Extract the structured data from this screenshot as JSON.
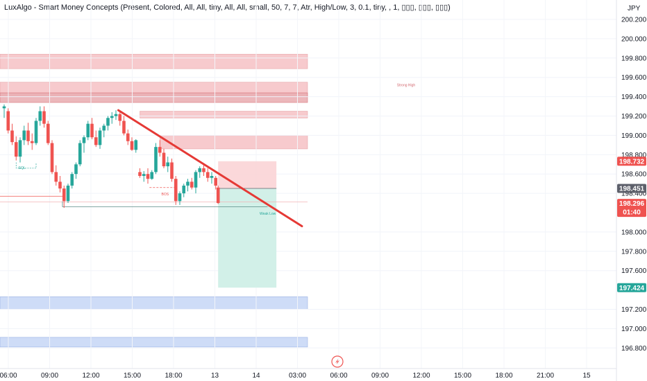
{
  "indicator_title": "LuxAlgo - Smart Money Concepts (Present, Colored, All, All, tiny, All, All, small, 50, 7, 7, Atr, High/Low, 3, 0.1, tiny, , 1, ▯▯▯, ▯▯▯, ▯▯▯)",
  "currency": "JPY",
  "colors": {
    "up": "#26a69a",
    "down": "#ef5350",
    "trendline": "#e53935",
    "supply": "#f7c5c8",
    "demand": "#c9d9f7",
    "tp_zone": "#cdeee6",
    "sl_zone": "#fbd4d6"
  },
  "chart_data": {
    "type": "candlestick",
    "title": "",
    "ylim": [
      196.8,
      200.25
    ],
    "y_ticks": [
      {
        "value": 200.2,
        "label": "200.200"
      },
      {
        "value": 200.0,
        "label": "200.000"
      },
      {
        "value": 199.8,
        "label": "199.800"
      },
      {
        "value": 199.6,
        "label": "199.600"
      },
      {
        "value": 199.4,
        "label": "199.400"
      },
      {
        "value": 199.2,
        "label": "199.200"
      },
      {
        "value": 199.0,
        "label": "199.000"
      },
      {
        "value": 198.8,
        "label": "198.800"
      },
      {
        "value": 198.6,
        "label": "198.600"
      },
      {
        "value": 198.4,
        "label": "198.400"
      },
      {
        "value": 198.0,
        "label": "198.000"
      },
      {
        "value": 197.8,
        "label": "197.800"
      },
      {
        "value": 197.6,
        "label": "197.600"
      },
      {
        "value": 197.2,
        "label": "197.200"
      },
      {
        "value": 197.0,
        "label": "197.000"
      },
      {
        "value": 196.8,
        "label": "196.800"
      }
    ],
    "x_ticks": [
      "06:00",
      "09:00",
      "12:00",
      "15:00",
      "18:00",
      "13",
      "14",
      "03:00",
      "06:00",
      "09:00",
      "12:00",
      "15:00",
      "18:00",
      "21:00",
      "15"
    ],
    "price_tags": [
      {
        "label": "198.732",
        "value": 198.732,
        "color": "#ef5350"
      },
      {
        "label": "198.451",
        "value": 198.451,
        "color": "#5d606b"
      },
      {
        "label": "198.296",
        "value": 198.296,
        "color": "#ef5350",
        "countdown": "01:40"
      },
      {
        "label": "197.424",
        "value": 197.424,
        "color": "#26a69a"
      }
    ],
    "zones": [
      {
        "kind": "supply",
        "from": 199.69,
        "to": 199.84,
        "x_start": 0,
        "x_end": 38
      },
      {
        "kind": "supply",
        "from": 199.4,
        "to": 199.55,
        "x_start": 0,
        "x_end": 38,
        "label": "Strong High"
      },
      {
        "kind": "supply-dark",
        "from": 199.34,
        "to": 199.44,
        "x_start": 0,
        "x_end": 38
      },
      {
        "kind": "supply",
        "from": 199.18,
        "to": 199.25,
        "x_start": 17,
        "x_end": 38
      },
      {
        "kind": "supply",
        "from": 198.86,
        "to": 199.0,
        "x_start": 19.5,
        "x_end": 38
      },
      {
        "kind": "demand",
        "from": 197.2,
        "to": 197.33,
        "x_start": 0,
        "x_end": 38
      },
      {
        "kind": "demand",
        "from": 196.81,
        "to": 196.91,
        "x_start": 0,
        "x_end": 38
      }
    ],
    "annotations": [
      {
        "text": "EQL",
        "x": 1.8,
        "y": 198.65,
        "color": "#26a69a"
      },
      {
        "text": "BOS",
        "x": 19.7,
        "y": 198.38,
        "color": "#ef5350"
      },
      {
        "text": "Weak Low",
        "x": 32,
        "y": 198.18,
        "color": "#26a69a"
      }
    ],
    "levels": [
      {
        "y": 198.37,
        "x_from": 0,
        "x_to": 7.3,
        "color": "#ef5350"
      },
      {
        "y": 198.26,
        "x_from": 7.3,
        "x_to": 33,
        "color": "#5b8c85"
      },
      {
        "y": 198.46,
        "x_from": 18.2,
        "x_to": 21.5,
        "color": "#ef5350",
        "dashed": true
      },
      {
        "y": 198.31,
        "x_from": 0,
        "x_to": 38,
        "color": "#f3b4b6"
      }
    ],
    "trendline": {
      "x1": 14.3,
      "y1": 199.26,
      "x2": 37.3,
      "y2": 198.06
    },
    "position": {
      "entry": 198.451,
      "stop": 198.732,
      "target": 197.424,
      "x_start": 26.8,
      "x_end": 34.1
    },
    "candles": [
      [
        0,
        199.28,
        199.32,
        199.18,
        199.3
      ],
      [
        0.5,
        199.25,
        199.28,
        199.02,
        199.05
      ],
      [
        1,
        199.05,
        199.12,
        198.9,
        198.93
      ],
      [
        1.5,
        198.93,
        198.99,
        198.74,
        198.78
      ],
      [
        2,
        198.78,
        198.98,
        198.72,
        198.95
      ],
      [
        2.5,
        198.95,
        199.1,
        198.9,
        199.05
      ],
      [
        3,
        199.05,
        199.13,
        198.9,
        198.94
      ],
      [
        3.5,
        198.94,
        199.02,
        198.85,
        198.92
      ],
      [
        4,
        198.92,
        199.18,
        198.9,
        199.15
      ],
      [
        4.5,
        199.15,
        199.3,
        199.1,
        199.25
      ],
      [
        5,
        199.25,
        199.3,
        199.08,
        199.12
      ],
      [
        5.5,
        199.12,
        199.15,
        198.9,
        198.92
      ],
      [
        6,
        198.92,
        198.95,
        198.6,
        198.62
      ],
      [
        6.5,
        198.62,
        198.69,
        198.48,
        198.52
      ],
      [
        7,
        198.52,
        198.58,
        198.41,
        198.45
      ],
      [
        7.5,
        198.45,
        198.48,
        198.25,
        198.32
      ],
      [
        8,
        198.32,
        198.5,
        198.3,
        198.48
      ],
      [
        8.5,
        198.48,
        198.62,
        198.45,
        198.6
      ],
      [
        9,
        198.6,
        198.72,
        198.55,
        198.7
      ],
      [
        9.5,
        198.7,
        198.95,
        198.68,
        198.92
      ],
      [
        10,
        198.92,
        199.0,
        198.82,
        198.98
      ],
      [
        10.5,
        198.98,
        199.15,
        198.95,
        199.12
      ],
      [
        11,
        199.12,
        199.18,
        198.96,
        198.98
      ],
      [
        11.5,
        198.98,
        199.05,
        198.88,
        198.9
      ],
      [
        12,
        198.9,
        199.08,
        198.86,
        199.05
      ],
      [
        12.5,
        199.05,
        199.12,
        198.98,
        199.1
      ],
      [
        13,
        199.1,
        199.2,
        199.05,
        199.18
      ],
      [
        13.5,
        199.18,
        199.24,
        199.12,
        199.2
      ],
      [
        14,
        199.2,
        199.26,
        199.16,
        199.22
      ],
      [
        14.5,
        199.22,
        199.25,
        199.1,
        199.15
      ],
      [
        15,
        199.15,
        199.2,
        199.0,
        199.02
      ],
      [
        15.5,
        199.02,
        199.06,
        198.9,
        198.94
      ],
      [
        16,
        198.94,
        198.98,
        198.84,
        198.85
      ],
      [
        16.5,
        198.85,
        198.96,
        198.82,
        198.95
      ],
      [
        17,
        198.62,
        198.66,
        198.56,
        198.58
      ],
      [
        17.5,
        198.58,
        198.63,
        198.52,
        198.6
      ],
      [
        18,
        198.6,
        198.66,
        198.5,
        198.55
      ],
      [
        18.5,
        198.55,
        198.64,
        198.54,
        198.62
      ],
      [
        19,
        198.62,
        198.92,
        198.6,
        198.88
      ],
      [
        19.5,
        198.88,
        198.95,
        198.78,
        198.82
      ],
      [
        20,
        198.82,
        198.86,
        198.66,
        198.68
      ],
      [
        20.5,
        198.68,
        198.78,
        198.62,
        198.72
      ],
      [
        21,
        198.72,
        198.76,
        198.52,
        198.55
      ],
      [
        21.5,
        198.55,
        198.58,
        198.28,
        198.32
      ],
      [
        22,
        198.32,
        198.42,
        198.28,
        198.4
      ],
      [
        22.5,
        198.4,
        198.5,
        198.36,
        198.48
      ],
      [
        23,
        198.48,
        198.55,
        198.42,
        198.52
      ],
      [
        23.5,
        198.52,
        198.56,
        198.44,
        198.46
      ],
      [
        24,
        198.46,
        198.64,
        198.4,
        198.62
      ],
      [
        24.5,
        198.62,
        198.68,
        198.56,
        198.66
      ],
      [
        25,
        198.66,
        198.7,
        198.58,
        198.62
      ],
      [
        25.5,
        198.62,
        198.66,
        198.52,
        198.56
      ],
      [
        26,
        198.56,
        198.62,
        198.5,
        198.58
      ],
      [
        26.5,
        198.56,
        198.58,
        198.44,
        198.48
      ],
      [
        26.8,
        198.46,
        198.48,
        198.29,
        198.3
      ]
    ]
  }
}
